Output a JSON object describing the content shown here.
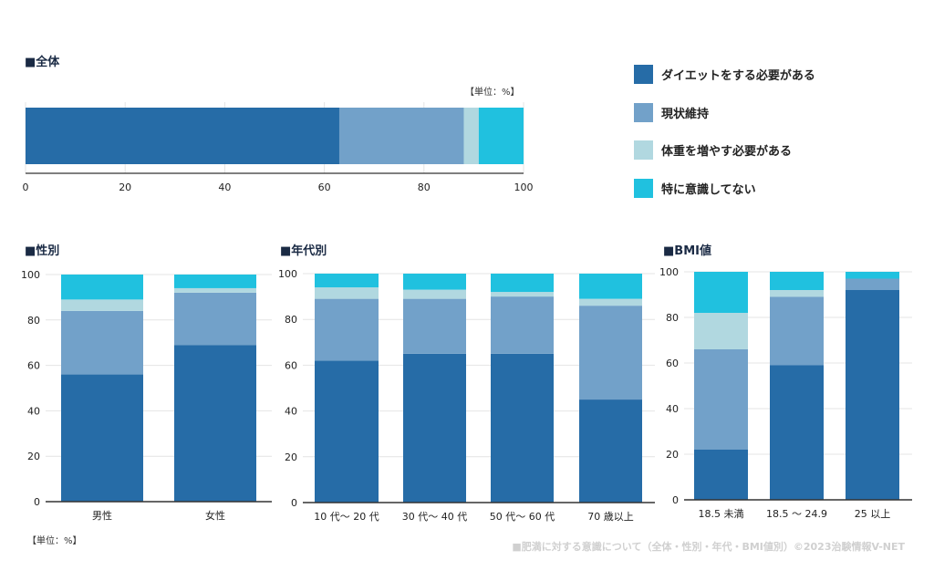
{
  "legend": {
    "series": [
      "ダイエットをする必要がある",
      "現状維持",
      "体重を増やす必要がある",
      "特に意識してない"
    ],
    "colors": [
      "#266ca7",
      "#72a1c9",
      "#b1d8e0",
      "#20c1df"
    ]
  },
  "footer": {
    "unit": "【単位：%】",
    "credit": "■肥満に対する意識について（全体・性別・年代・BMI値別）©2023治験情報V-NET"
  },
  "chart_data": [
    {
      "type": "bar",
      "orientation": "horizontal",
      "stacked": true,
      "title": "■全体",
      "unit": "【単位：%】",
      "categories": [
        "全体"
      ],
      "xlim": [
        0,
        100
      ],
      "ticks": [
        0,
        20,
        40,
        60,
        80,
        100
      ],
      "grid": true,
      "series": [
        {
          "name": "ダイエットをする必要がある",
          "values": [
            63
          ]
        },
        {
          "name": "現状維持",
          "values": [
            25
          ]
        },
        {
          "name": "体重を増やす必要がある",
          "values": [
            3
          ]
        },
        {
          "name": "特に意識してない",
          "values": [
            9
          ]
        }
      ]
    },
    {
      "type": "bar",
      "stacked": true,
      "title": "■性別",
      "categories": [
        "男性",
        "女性"
      ],
      "ylim": [
        0,
        100
      ],
      "ticks": [
        0,
        20,
        40,
        60,
        80,
        100
      ],
      "grid": true,
      "series": [
        {
          "name": "ダイエットをする必要がある",
          "values": [
            56,
            69
          ]
        },
        {
          "name": "現状維持",
          "values": [
            28,
            23
          ]
        },
        {
          "name": "体重を増やす必要がある",
          "values": [
            5,
            2
          ]
        },
        {
          "name": "特に意識してない",
          "values": [
            11,
            6
          ]
        }
      ]
    },
    {
      "type": "bar",
      "stacked": true,
      "title": "■年代別",
      "categories": [
        "10 代～ 20 代",
        "30 代～ 40 代",
        "50 代～ 60 代",
        "70 歳以上"
      ],
      "ylim": [
        0,
        100
      ],
      "ticks": [
        0,
        20,
        40,
        60,
        80,
        100
      ],
      "grid": true,
      "series": [
        {
          "name": "ダイエットをする必要がある",
          "values": [
            62,
            65,
            65,
            45
          ]
        },
        {
          "name": "現状維持",
          "values": [
            27,
            24,
            25,
            41
          ]
        },
        {
          "name": "体重を増やす必要がある",
          "values": [
            5,
            4,
            2,
            3
          ]
        },
        {
          "name": "特に意識してない",
          "values": [
            6,
            7,
            8,
            11
          ]
        }
      ]
    },
    {
      "type": "bar",
      "stacked": true,
      "title": "■BMI値",
      "categories": [
        "18.5 未満",
        "18.5 ～ 24.9",
        "25 以上"
      ],
      "ylim": [
        0,
        100
      ],
      "ticks": [
        0,
        20,
        40,
        60,
        80,
        100
      ],
      "grid": true,
      "series": [
        {
          "name": "ダイエットをする必要がある",
          "values": [
            22,
            59,
            92
          ]
        },
        {
          "name": "現状維持",
          "values": [
            44,
            30,
            5
          ]
        },
        {
          "name": "体重を増やす必要がある",
          "values": [
            16,
            3,
            0
          ]
        },
        {
          "name": "特に意識してない",
          "values": [
            18,
            8,
            3
          ]
        }
      ]
    }
  ]
}
